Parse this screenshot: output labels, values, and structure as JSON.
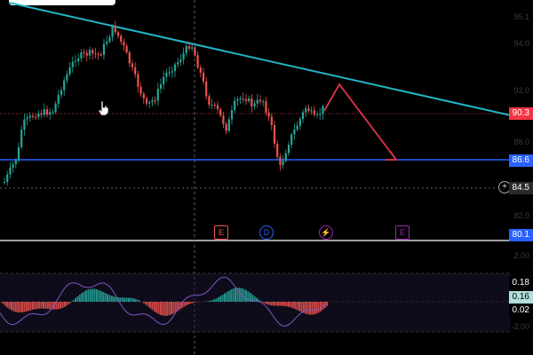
{
  "price_labels": {
    "resistance_price": "90.3",
    "support_price": "86.6",
    "current_price": "84.5",
    "indicator_boundary_price": "80.1"
  },
  "indicator_labels": {
    "upper": "0.18",
    "current": "0.16",
    "lower": "0.02"
  },
  "event_markers": {
    "earnings_1": "E",
    "dividend": "D",
    "split": "⚡",
    "earnings_2": "E"
  },
  "colors": {
    "background": "#000000",
    "up_candle": "#26a69a",
    "down_candle": "#ef5350",
    "trendline": "#21b5c6",
    "support_line": "#2962ff",
    "projection": "#e0334a",
    "resistance_tag": "#f23645",
    "support_tag": "#2962ff",
    "oscillator_line": "#7e57c2"
  },
  "icons": {
    "cursor": "hand-pointer-icon",
    "add_alert": "plus-circle-icon"
  }
}
